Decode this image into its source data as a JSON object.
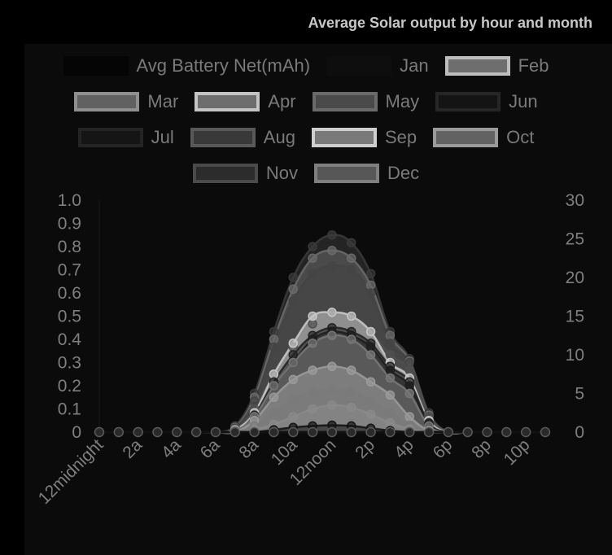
{
  "chart_data": {
    "type": "area",
    "title": "Average Solar output by hour and month",
    "x": [
      "12midnight",
      "1a",
      "2a",
      "3a",
      "4a",
      "5a",
      "6a",
      "7a",
      "8a",
      "9a",
      "10a",
      "11a",
      "12noon",
      "1p",
      "2p",
      "3p",
      "4p",
      "5p",
      "6p",
      "7p",
      "8p",
      "9p",
      "10p",
      "11p"
    ],
    "x_tick_labels": [
      "12midnight",
      "2a",
      "4a",
      "6a",
      "8a",
      "10a",
      "12noon",
      "2p",
      "4p",
      "6p",
      "8p",
      "10p"
    ],
    "y_left_ticks": [
      "0",
      "0.1",
      "0.2",
      "0.3",
      "0.4",
      "0.5",
      "0.6",
      "0.7",
      "0.8",
      "0.9",
      "1.0"
    ],
    "y_right_ticks": [
      "0",
      "5",
      "10",
      "15",
      "20",
      "25",
      "30"
    ],
    "ylim_left": [
      0,
      1.0
    ],
    "ylim_right": [
      0,
      30
    ],
    "legend_placement": "top",
    "series": [
      {
        "name": "Avg Battery Net(mAh)",
        "axis": "left",
        "color": "#050505",
        "values": [
          0,
          0,
          0,
          0,
          0,
          0,
          0,
          0,
          0,
          0,
          0,
          0,
          0,
          0,
          0,
          0,
          0,
          0,
          0,
          0,
          0,
          0,
          0,
          0
        ]
      },
      {
        "name": "Jan",
        "axis": "right",
        "color": "#141414",
        "values": [
          0,
          0,
          0,
          0,
          0,
          0,
          0,
          0,
          0,
          0.3,
          0.6,
          0.8,
          0.9,
          0.8,
          0.5,
          0.2,
          0,
          0,
          0,
          0,
          0,
          0,
          0,
          0
        ]
      },
      {
        "name": "Feb",
        "axis": "right",
        "color": "#8a8a8a",
        "values": [
          0,
          0,
          0,
          0,
          0,
          0,
          0,
          0,
          0.3,
          1,
          2,
          3,
          3.5,
          3.2,
          2.3,
          1.2,
          0.4,
          0,
          0,
          0,
          0,
          0,
          0,
          0
        ]
      },
      {
        "name": "Mar",
        "axis": "right",
        "color": "#7a7a7a",
        "values": [
          0,
          0,
          0,
          0,
          0,
          0,
          0,
          0,
          0.8,
          2.5,
          4.2,
          5.2,
          5.5,
          5.2,
          4,
          2.5,
          0.9,
          0,
          0,
          0,
          0,
          0,
          0,
          0
        ]
      },
      {
        "name": "Apr",
        "axis": "right",
        "color": "#9a9a9a",
        "values": [
          0,
          0,
          0,
          0,
          0,
          0,
          0,
          0,
          1.5,
          4.5,
          6.8,
          8,
          8.5,
          8,
          6.5,
          4.8,
          2,
          0.2,
          0,
          0,
          0,
          0,
          0,
          0
        ]
      },
      {
        "name": "May",
        "axis": "right",
        "color": "#505050",
        "values": [
          0,
          0,
          0,
          0,
          0,
          0,
          0,
          0.2,
          3,
          7.5,
          11,
          14,
          15.5,
          15,
          13,
          10,
          8,
          2,
          0,
          0,
          0,
          0,
          0,
          0
        ]
      },
      {
        "name": "Jun",
        "axis": "right",
        "color": "#1e1e1e",
        "values": [
          0,
          0,
          0,
          0,
          0,
          0,
          0,
          0,
          2,
          6,
          9,
          12,
          13,
          12.5,
          11,
          8,
          6,
          1,
          0,
          0,
          0,
          0,
          0,
          0
        ]
      },
      {
        "name": "Jul",
        "axis": "right",
        "color": "#222222",
        "values": [
          0,
          0,
          0,
          0,
          0,
          0,
          0,
          0,
          2.2,
          6.5,
          10,
          12.5,
          13.5,
          13,
          11.5,
          8.5,
          6.5,
          1.2,
          0,
          0,
          0,
          0,
          0,
          0
        ]
      },
      {
        "name": "Aug",
        "axis": "right",
        "color": "#444444",
        "values": [
          0,
          0,
          0,
          0,
          0,
          0,
          0,
          0.5,
          4,
          11,
          17,
          20.5,
          21.5,
          21,
          18,
          11.5,
          9,
          2,
          0,
          0,
          0,
          0,
          0,
          0
        ]
      },
      {
        "name": "Sep",
        "axis": "right",
        "color": "#c8c8c8",
        "values": [
          0,
          0,
          0,
          0,
          0,
          0,
          0,
          0.3,
          2.5,
          7.5,
          11.5,
          15,
          15.5,
          15,
          13,
          9,
          7,
          1.5,
          0,
          0,
          0,
          0,
          0,
          0
        ]
      },
      {
        "name": "Oct",
        "axis": "right",
        "color": "#777777",
        "values": [
          0,
          0,
          0,
          0,
          0,
          0,
          0,
          0.2,
          2,
          6,
          9,
          11.5,
          12.5,
          12,
          10,
          7,
          5,
          0.8,
          0,
          0,
          0,
          0,
          0,
          0
        ]
      },
      {
        "name": "Nov",
        "axis": "right",
        "color": "#3a3a3a",
        "values": [
          0,
          0,
          0,
          0,
          0,
          0,
          0,
          0.8,
          5,
          13,
          20,
          24,
          25.5,
          24.5,
          20.5,
          13,
          9.5,
          2.5,
          0,
          0,
          0,
          0,
          0,
          0
        ]
      },
      {
        "name": "Dec",
        "axis": "right",
        "color": "#6a6a6a",
        "values": [
          0,
          0,
          0,
          0,
          0,
          0,
          0,
          0.6,
          4.5,
          12,
          18.5,
          22.5,
          23.5,
          22.5,
          19,
          12.5,
          9.2,
          2.2,
          0,
          0,
          0,
          0,
          0,
          0
        ]
      }
    ]
  }
}
